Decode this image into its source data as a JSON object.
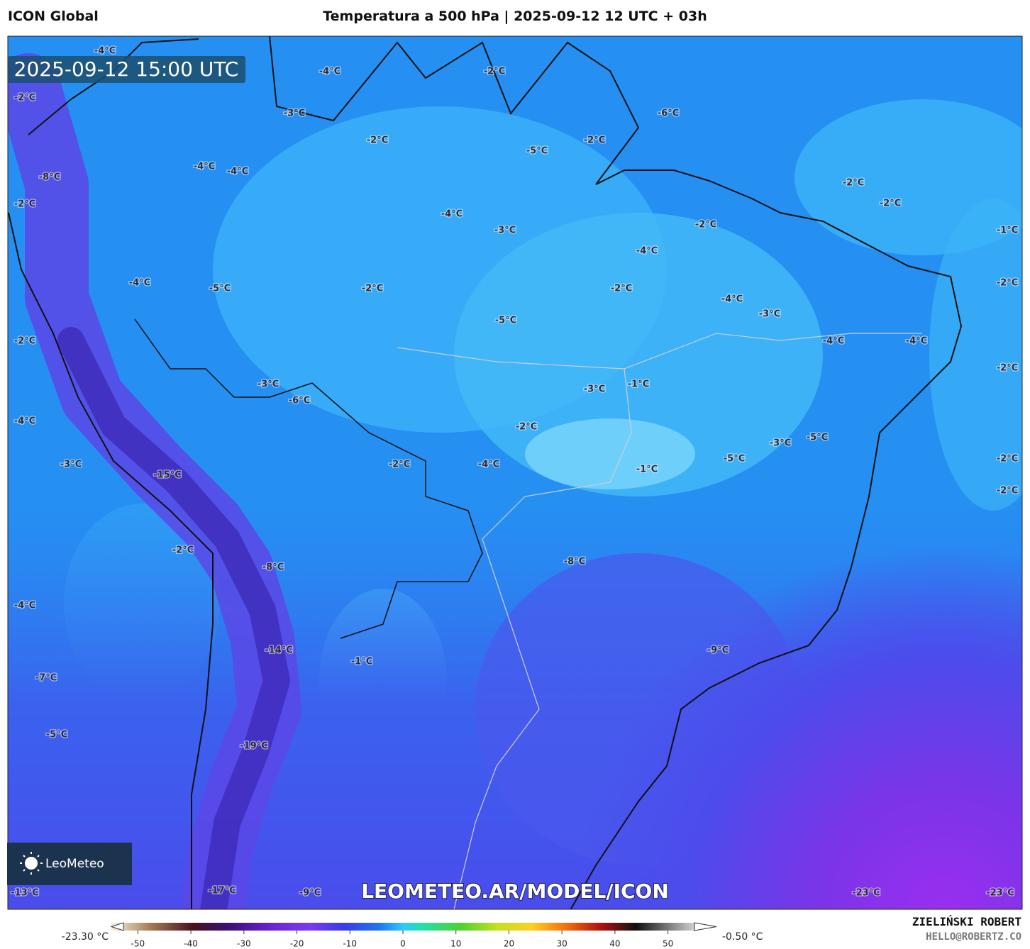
{
  "header": {
    "model": "ICON Global",
    "title": "Temperatura a 500 hPa | 2025-09-12 12 UTC + 03h"
  },
  "map": {
    "timestamp": "2025-09-12 15:00 UTC",
    "labels": [
      "-4°C",
      "-2°C",
      "-8°C",
      "-2°C",
      "-4°C",
      "-2°C",
      "-3°C",
      "-6°C",
      "-2°C",
      "-5°C",
      "-2°C",
      "-4°C",
      "-4°C",
      "-2°C",
      "-2°C",
      "-4°C",
      "-3°C",
      "-2°C",
      "-1°C",
      "-4°C",
      "-4°C",
      "-5°C",
      "-2°C",
      "-2°C",
      "-2°C",
      "-4°C",
      "-3°C",
      "-5°C",
      "-2°C",
      "-4°C",
      "-4°C",
      "-2°C",
      "-3°C",
      "-3°C",
      "-1°C",
      "-6°C",
      "-4°C",
      "-2°C",
      "-3°C",
      "-5°C",
      "-3°C",
      "-2°C",
      "-4°C",
      "-5°C",
      "-15°C",
      "-1°C",
      "-2°C",
      "-2°C",
      "-2°C",
      "-8°C",
      "-8°C",
      "-4°C",
      "-14°C",
      "-9°C",
      "-1°C",
      "-7°C",
      "-5°C",
      "-19°C",
      "-13°C",
      "-17°C",
      "-9°C",
      "-23°C",
      "-23°C"
    ],
    "watermark": "LEOMETEO.AR/MODEL/ICON",
    "logo": "LeoMeteo"
  },
  "colorbar": {
    "min_label": "-23.30 °C",
    "max_label": "-0.50 °C",
    "lim": [
      -55,
      55
    ],
    "ticks": [
      -50,
      -40,
      -30,
      -20,
      -10,
      0,
      10,
      20,
      30,
      40,
      50
    ]
  },
  "credit": {
    "author": "ZIELIŃSKI ROBERT",
    "contact": "HELLO@ROBERTZ.CO"
  }
}
